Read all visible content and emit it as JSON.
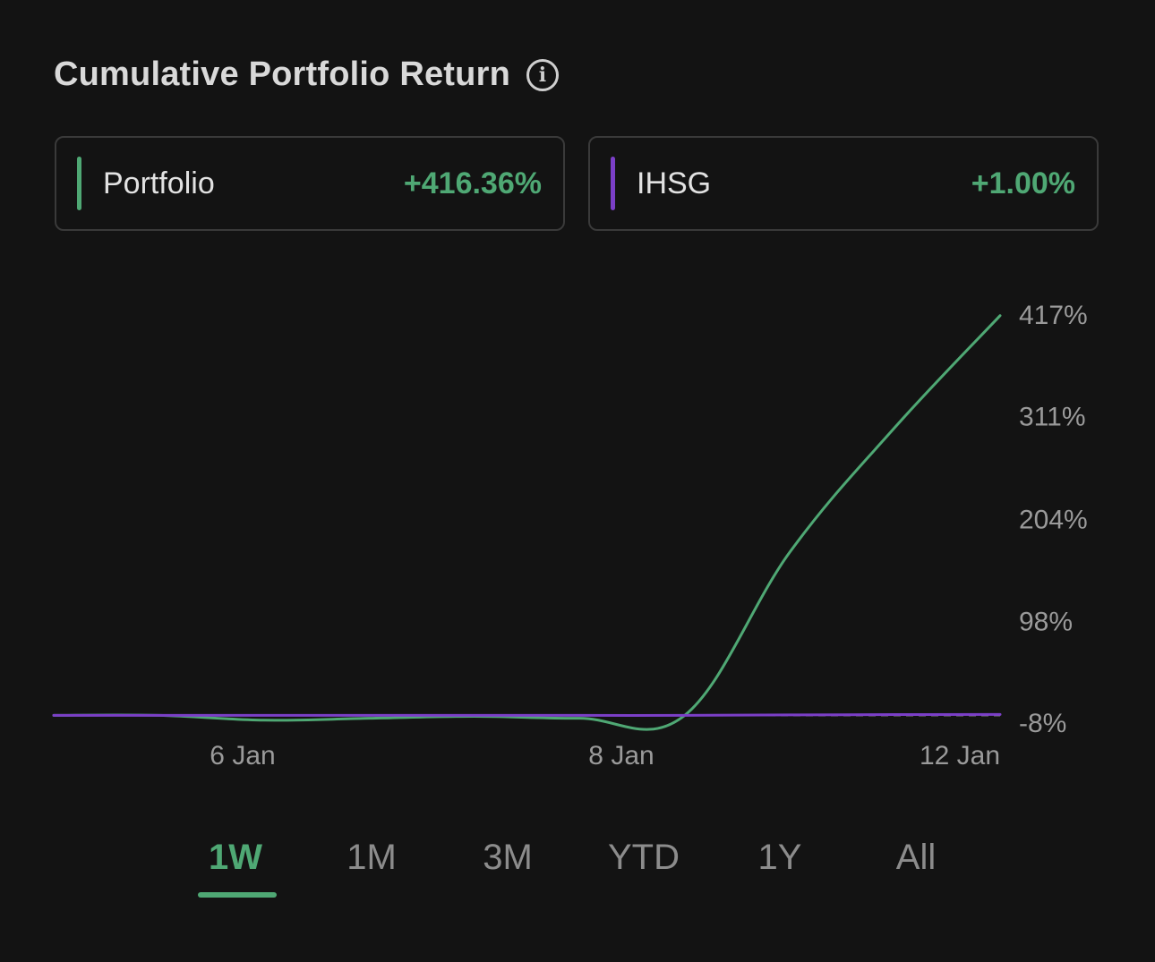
{
  "title": "Cumulative Portfolio Return",
  "legend": [
    {
      "name": "Portfolio",
      "value": "+416.36%",
      "color": "#4fa874"
    },
    {
      "name": "IHSG",
      "value": "+1.00%",
      "color": "#7b3fc7"
    }
  ],
  "periods": [
    "1W",
    "1M",
    "3M",
    "YTD",
    "1Y",
    "All"
  ],
  "active_period": "1W",
  "colors": {
    "background": "#131313",
    "positive": "#4fa874",
    "portfolio_line": "#4fa874",
    "ihsg_line": "#7b3fc7",
    "baseline": "#9a9a9a"
  },
  "chart_data": {
    "type": "line",
    "title": "Cumulative Portfolio Return",
    "x_tick_labels": [
      "6 Jan",
      "8 Jan",
      "12 Jan"
    ],
    "y_tick_labels": [
      "417%",
      "311%",
      "204%",
      "98%",
      "-8%"
    ],
    "y_ticks": [
      417,
      311,
      204,
      98,
      -8
    ],
    "ylim": [
      -8,
      417
    ],
    "x": [
      "",
      "6 Jan",
      "",
      "",
      "8 Jan",
      "",
      "",
      "",
      "",
      "12 Jan"
    ],
    "series": [
      {
        "name": "Portfolio",
        "color": "#4fa874",
        "values": [
          0,
          0,
          -5,
          -3,
          -1,
          -3,
          0,
          170,
          300,
          416.36
        ]
      },
      {
        "name": "IHSG",
        "color": "#7b3fc7",
        "values": [
          0,
          0,
          0,
          0,
          0,
          0,
          0,
          0.5,
          0.8,
          1.0
        ]
      }
    ],
    "baseline": 0,
    "grid": false,
    "legend": "top"
  }
}
